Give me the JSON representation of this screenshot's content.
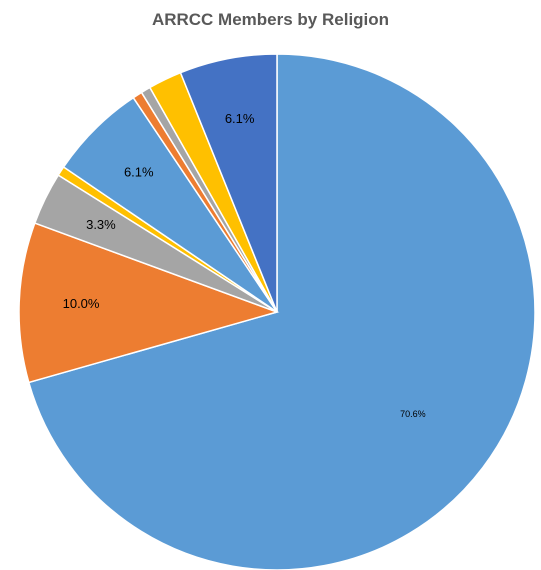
{
  "chart_data": {
    "type": "pie",
    "title": "ARRCC Members by Religion",
    "start_angle_deg": 0,
    "direction": "clockwise",
    "legend": "none",
    "slices": [
      {
        "value": 70.6,
        "label": "70.6%",
        "color": "#5b9bd5",
        "label_size": "small"
      },
      {
        "value": 10.0,
        "label": "10.0%",
        "color": "#ed7d31"
      },
      {
        "value": 3.3,
        "label": "3.3%",
        "color": "#a5a5a5"
      },
      {
        "value": 0.6,
        "label": "",
        "color": "#ffc000"
      },
      {
        "value": 6.1,
        "label": "6.1%",
        "color": "#5b9bd5"
      },
      {
        "value": 0.6,
        "label": "",
        "color": "#ed7d31"
      },
      {
        "value": 0.6,
        "label": "",
        "color": "#a5a5a5"
      },
      {
        "value": 2.1,
        "label": "",
        "color": "#ffc000"
      },
      {
        "value": 6.1,
        "label": "6.1%",
        "color": "#4472c4"
      }
    ]
  }
}
